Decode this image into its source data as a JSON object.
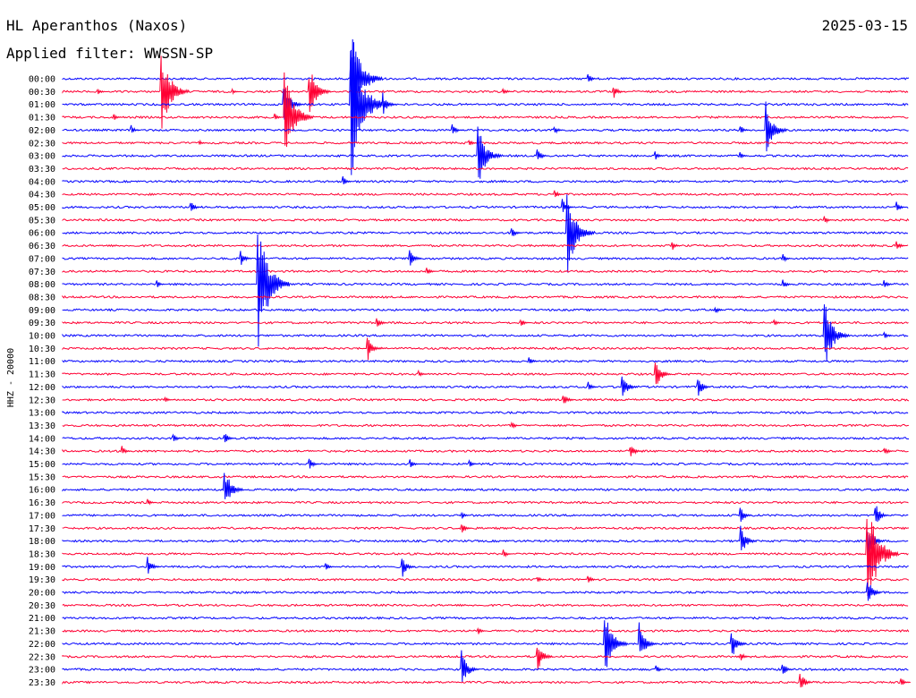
{
  "header": {
    "station": "HL Aperanthos (Naxos)",
    "date": "2025-03-15",
    "filter": "Applied filter: WWSSN-SP"
  },
  "chart_data": {
    "type": "line",
    "title": "HL Aperanthos (Naxos)",
    "ylabel": "HHZ - 20000",
    "row_labels": [
      "00:00",
      "00:30",
      "01:00",
      "01:30",
      "02:00",
      "02:30",
      "03:00",
      "03:30",
      "04:00",
      "04:30",
      "05:00",
      "05:30",
      "06:00",
      "06:30",
      "07:00",
      "07:30",
      "08:00",
      "08:30",
      "09:00",
      "09:30",
      "10:00",
      "10:30",
      "11:00",
      "11:30",
      "12:00",
      "12:30",
      "13:00",
      "13:30",
      "14:00",
      "14:30",
      "15:00",
      "15:30",
      "16:00",
      "16:30",
      "17:00",
      "17:30",
      "18:00",
      "18:30",
      "19:00",
      "19:30",
      "20:00",
      "20:30",
      "21:00",
      "21:30",
      "22:00",
      "22:30",
      "23:00",
      "23:30"
    ],
    "colors": {
      "even": "#0000ff",
      "odd": "#ff0033"
    },
    "x_minutes": [
      0,
      30
    ],
    "events": [
      {
        "row": 0,
        "t": 0.62,
        "a": 6
      },
      {
        "row": 1,
        "t": 0.04,
        "a": 5
      },
      {
        "row": 1,
        "t": 0.2,
        "a": 3
      },
      {
        "row": 1,
        "t": 0.52,
        "a": 6
      },
      {
        "row": 1,
        "t": 0.65,
        "a": 10
      },
      {
        "row": 2,
        "t": 0.26,
        "a": 28
      },
      {
        "row": 2,
        "t": 0.36,
        "a": 14
      },
      {
        "row": 3,
        "t": 0.06,
        "a": 4
      },
      {
        "row": 3,
        "t": 0.25,
        "a": 4
      },
      {
        "row": 4,
        "t": 0.08,
        "a": 6
      },
      {
        "row": 4,
        "t": 0.46,
        "a": 8
      },
      {
        "row": 4,
        "t": 0.58,
        "a": 6
      },
      {
        "row": 4,
        "t": 0.8,
        "a": 6
      },
      {
        "row": 5,
        "t": 0.16,
        "a": 4
      },
      {
        "row": 5,
        "t": 0.48,
        "a": 5
      },
      {
        "row": 6,
        "t": 0.56,
        "a": 10
      },
      {
        "row": 6,
        "t": 0.7,
        "a": 6
      },
      {
        "row": 6,
        "t": 0.8,
        "a": 5
      },
      {
        "row": 8,
        "t": 0.33,
        "a": 6
      },
      {
        "row": 9,
        "t": 0.58,
        "a": 6
      },
      {
        "row": 10,
        "t": 0.15,
        "a": 8
      },
      {
        "row": 10,
        "t": 0.59,
        "a": 10
      },
      {
        "row": 10,
        "t": 0.985,
        "a": 6
      },
      {
        "row": 11,
        "t": 0.9,
        "a": 5
      },
      {
        "row": 12,
        "t": 0.53,
        "a": 8
      },
      {
        "row": 13,
        "t": 0.72,
        "a": 6
      },
      {
        "row": 13,
        "t": 0.985,
        "a": 6
      },
      {
        "row": 14,
        "t": 0.21,
        "a": 10
      },
      {
        "row": 14,
        "t": 0.41,
        "a": 12
      },
      {
        "row": 14,
        "t": 0.85,
        "a": 5
      },
      {
        "row": 15,
        "t": 0.43,
        "a": 6
      },
      {
        "row": 16,
        "t": 0.11,
        "a": 5
      },
      {
        "row": 16,
        "t": 0.85,
        "a": 6
      },
      {
        "row": 16,
        "t": 0.97,
        "a": 6
      },
      {
        "row": 18,
        "t": 0.77,
        "a": 5
      },
      {
        "row": 19,
        "t": 0.37,
        "a": 8
      },
      {
        "row": 19,
        "t": 0.54,
        "a": 6
      },
      {
        "row": 19,
        "t": 0.84,
        "a": 5
      },
      {
        "row": 20,
        "t": 0.97,
        "a": 5
      },
      {
        "row": 21,
        "t": 0.36,
        "a": 16
      },
      {
        "row": 22,
        "t": 0.55,
        "a": 6
      },
      {
        "row": 23,
        "t": 0.42,
        "a": 5
      },
      {
        "row": 23,
        "t": 0.7,
        "a": 20
      },
      {
        "row": 24,
        "t": 0.62,
        "a": 6
      },
      {
        "row": 24,
        "t": 0.66,
        "a": 18
      },
      {
        "row": 24,
        "t": 0.75,
        "a": 14
      },
      {
        "row": 25,
        "t": 0.12,
        "a": 4
      },
      {
        "row": 25,
        "t": 0.59,
        "a": 10
      },
      {
        "row": 27,
        "t": 0.53,
        "a": 5
      },
      {
        "row": 28,
        "t": 0.13,
        "a": 6
      },
      {
        "row": 28,
        "t": 0.19,
        "a": 8
      },
      {
        "row": 29,
        "t": 0.07,
        "a": 6
      },
      {
        "row": 29,
        "t": 0.67,
        "a": 10
      },
      {
        "row": 29,
        "t": 0.97,
        "a": 6
      },
      {
        "row": 30,
        "t": 0.29,
        "a": 8
      },
      {
        "row": 30,
        "t": 0.41,
        "a": 6
      },
      {
        "row": 30,
        "t": 0.48,
        "a": 5
      },
      {
        "row": 32,
        "t": 0.19,
        "a": 28
      },
      {
        "row": 33,
        "t": 0.1,
        "a": 4
      },
      {
        "row": 34,
        "t": 0.47,
        "a": 5
      },
      {
        "row": 34,
        "t": 0.8,
        "a": 12
      },
      {
        "row": 34,
        "t": 0.96,
        "a": 16
      },
      {
        "row": 35,
        "t": 0.47,
        "a": 8
      },
      {
        "row": 36,
        "t": 0.8,
        "a": 20
      },
      {
        "row": 36,
        "t": 0.95,
        "a": 24
      },
      {
        "row": 37,
        "t": 0.52,
        "a": 5
      },
      {
        "row": 38,
        "t": 0.1,
        "a": 12
      },
      {
        "row": 38,
        "t": 0.4,
        "a": 14
      },
      {
        "row": 38,
        "t": 0.31,
        "a": 5
      },
      {
        "row": 39,
        "t": 0.56,
        "a": 5
      },
      {
        "row": 39,
        "t": 0.62,
        "a": 6
      },
      {
        "row": 40,
        "t": 0.95,
        "a": 18
      },
      {
        "row": 43,
        "t": 0.49,
        "a": 5
      },
      {
        "row": 44,
        "t": 0.64,
        "a": 40
      },
      {
        "row": 44,
        "t": 0.68,
        "a": 24
      },
      {
        "row": 44,
        "t": 0.79,
        "a": 20
      },
      {
        "row": 45,
        "t": 0.56,
        "a": 20
      },
      {
        "row": 45,
        "t": 0.8,
        "a": 6
      },
      {
        "row": 46,
        "t": 0.47,
        "a": 24
      },
      {
        "row": 46,
        "t": 0.7,
        "a": 5
      },
      {
        "row": 46,
        "t": 0.85,
        "a": 10
      },
      {
        "row": 47,
        "t": 0.87,
        "a": 14
      },
      {
        "row": 47,
        "t": 0.99,
        "a": 6
      }
    ],
    "big_events": [
      {
        "row": 1,
        "t": 0.115,
        "a": 50
      },
      {
        "row": 3,
        "t": 0.25,
        "a": 54
      },
      {
        "row": 1,
        "t": 0.29,
        "a": 34
      },
      {
        "row": 2,
        "t": 0.34,
        "a": 110
      },
      {
        "row": 4,
        "t": 0.83,
        "a": 34
      },
      {
        "row": 6,
        "t": 0.49,
        "a": 38
      },
      {
        "row": 12,
        "t": 0.595,
        "a": 50
      },
      {
        "row": 16,
        "t": 0.23,
        "a": 80
      },
      {
        "row": 20,
        "t": 0.9,
        "a": 42
      },
      {
        "row": 37,
        "t": 0.95,
        "a": 70
      },
      {
        "row": 0,
        "t": 0.34,
        "a": 60
      }
    ]
  }
}
